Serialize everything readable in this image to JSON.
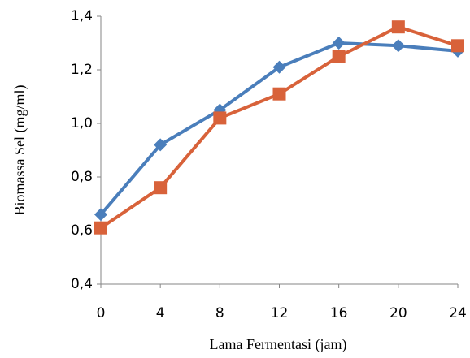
{
  "chart_data": {
    "type": "line",
    "x_label": "Lama Fermentasi (jam)",
    "y_label": "Biomassa Sel (mg/ml)",
    "x": [
      0,
      4,
      8,
      12,
      16,
      20,
      24
    ],
    "xlim": [
      0,
      24
    ],
    "xticks": [
      0,
      4,
      8,
      12,
      16,
      20,
      24
    ],
    "ylim": [
      0.4,
      1.4
    ],
    "yticks": [
      {
        "value": 0.4,
        "label": "0,4"
      },
      {
        "value": 0.6,
        "label": "0,6"
      },
      {
        "value": 0.8,
        "label": "0,8"
      },
      {
        "value": 1.0,
        "label": "1,0"
      },
      {
        "value": 1.2,
        "label": "1,2"
      },
      {
        "value": 1.4,
        "label": "1,4"
      }
    ],
    "grid": false,
    "series": [
      {
        "color": "#4a7ebb",
        "marker": "diamond",
        "values": [
          0.66,
          0.92,
          1.05,
          1.21,
          1.3,
          1.29,
          1.27
        ]
      },
      {
        "color": "#d8623a",
        "marker": "square",
        "values": [
          0.61,
          0.76,
          1.02,
          1.11,
          1.25,
          1.36,
          1.29
        ]
      }
    ]
  }
}
